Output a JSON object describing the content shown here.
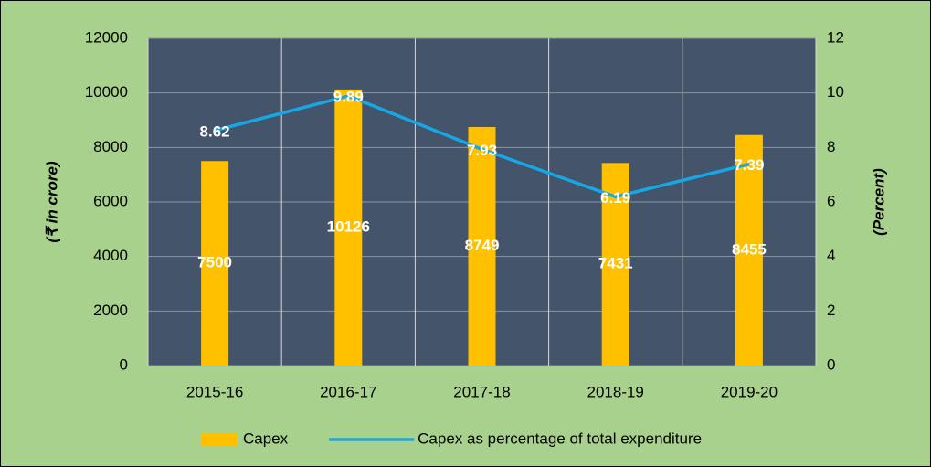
{
  "chart_data": {
    "type": "bar-line",
    "categories": [
      "2015-16",
      "2016-17",
      "2017-18",
      "2018-19",
      "2019-20"
    ],
    "series": [
      {
        "name": "Capex",
        "type": "bar",
        "color": "#ffc000",
        "values": [
          7500,
          10126,
          8749,
          7431,
          8455
        ]
      },
      {
        "name": "Capex as percentage of total expenditure",
        "type": "line",
        "axis": "y2",
        "color": "#16a8e6",
        "values": [
          8.62,
          9.89,
          7.93,
          6.19,
          7.39
        ]
      }
    ],
    "y_label": "(₹ in crore)",
    "y2_label": "(Percent)",
    "ylim": [
      0,
      12000
    ],
    "yticks": [
      0,
      2000,
      4000,
      6000,
      8000,
      10000,
      12000
    ],
    "y2lim": [
      0,
      12
    ],
    "y2ticks": [
      0,
      2,
      4,
      6,
      8,
      10,
      12
    ],
    "grid": true,
    "legend": "bottom"
  }
}
